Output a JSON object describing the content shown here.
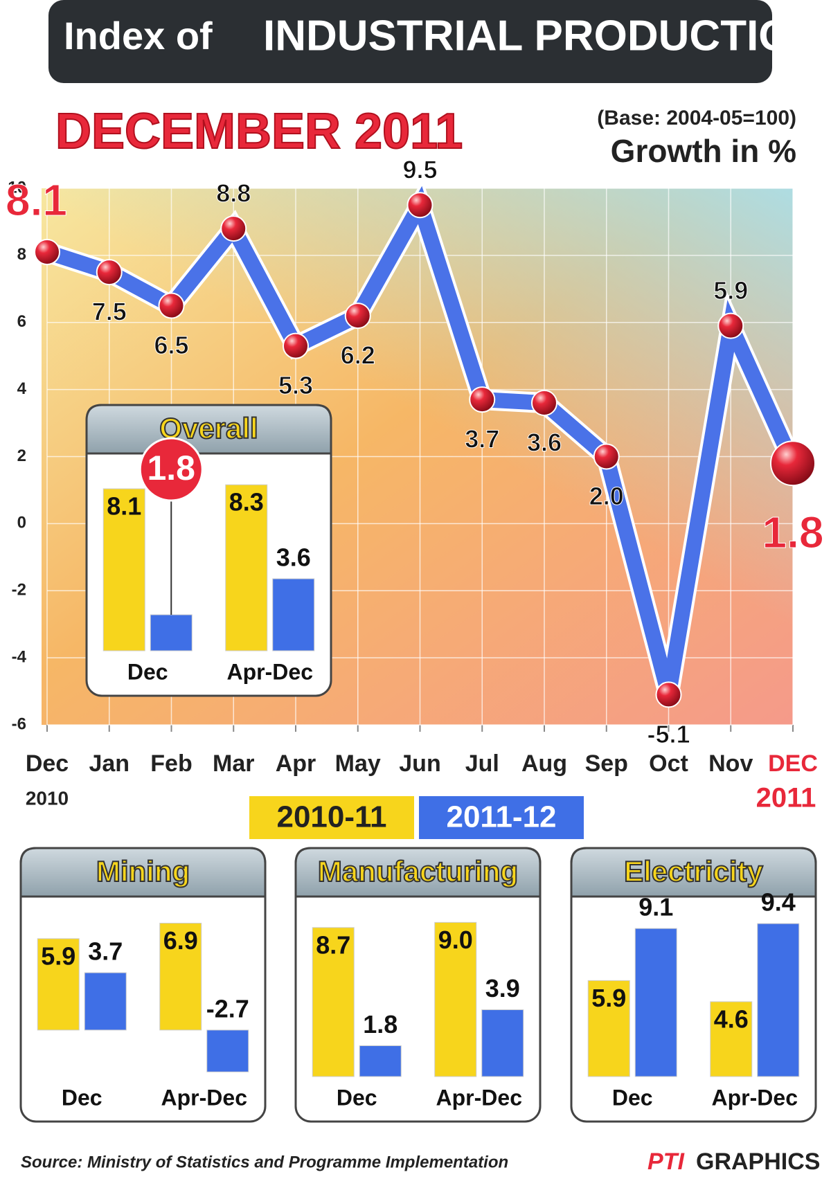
{
  "header": {
    "title_prefix": "Index of",
    "title": "INDUSTRIAL PRODUCTION"
  },
  "chart_data": [
    {
      "type": "line",
      "title": "DECEMBER 2011",
      "note": "(Base: 2004-05=100)",
      "y_label": "Growth in %",
      "categories": [
        "Dec",
        "Jan",
        "Feb",
        "Mar",
        "Apr",
        "May",
        "Jun",
        "Jul",
        "Aug",
        "Sep",
        "Oct",
        "Nov",
        "DEC"
      ],
      "start_year": "2010",
      "end_year": "2011",
      "values": [
        8.1,
        7.5,
        6.5,
        8.8,
        5.3,
        6.2,
        9.5,
        3.7,
        3.6,
        2.0,
        -5.1,
        5.9,
        1.8
      ],
      "value_labels": [
        "8.1",
        "7.5",
        "6.5",
        "8.8",
        "5.3",
        "6.2",
        "9.5",
        "3.7",
        "3.6",
        "2.0",
        "-5.1",
        "5.9",
        "1.8"
      ],
      "color": "#4a72e8",
      "ylim": [
        -6,
        10
      ],
      "yticks": [
        -6,
        -4,
        -2,
        0,
        2,
        4,
        6,
        8,
        10
      ],
      "grid": true
    },
    {
      "type": "bar",
      "title": "Overall",
      "categories": [
        "Dec",
        "Apr-Dec"
      ],
      "ylim": [
        0,
        9
      ],
      "series": [
        {
          "color": "#f7d51c",
          "values": [
            8.1,
            8.3
          ],
          "value_labels": [
            "8.1",
            "8.3"
          ]
        },
        {
          "color": "#3f6fe6",
          "values": [
            1.8,
            3.6
          ],
          "value_labels": [
            "1.8",
            "3.6"
          ]
        }
      ]
    },
    {
      "type": "bar",
      "title": "Mining",
      "categories": [
        "Dec",
        "Apr-Dec"
      ],
      "ylim": [
        -3,
        7.5
      ],
      "series": [
        {
          "color": "#f7d51c",
          "values": [
            5.9,
            6.9
          ],
          "value_labels": [
            "5.9",
            "6.9"
          ]
        },
        {
          "color": "#3f6fe6",
          "values": [
            3.7,
            -2.7
          ],
          "value_labels": [
            "3.7",
            "-2.7"
          ]
        }
      ]
    },
    {
      "type": "bar",
      "title": "Manufacturing",
      "categories": [
        "Dec",
        "Apr-Dec"
      ],
      "ylim": [
        0,
        9.5
      ],
      "series": [
        {
          "color": "#f7d51c",
          "values": [
            8.7,
            9.0
          ],
          "value_labels": [
            "8.7",
            "9.0"
          ]
        },
        {
          "color": "#3f6fe6",
          "values": [
            1.8,
            3.9
          ],
          "value_labels": [
            "1.8",
            "3.9"
          ]
        }
      ]
    },
    {
      "type": "bar",
      "title": "Electricity",
      "categories": [
        "Dec",
        "Apr-Dec"
      ],
      "ylim": [
        0,
        10
      ],
      "series": [
        {
          "color": "#f7d51c",
          "values": [
            5.9,
            4.6
          ],
          "value_labels": [
            "5.9",
            "4.6"
          ]
        },
        {
          "color": "#3f6fe6",
          "values": [
            9.1,
            9.4
          ],
          "value_labels": [
            "9.1",
            "9.4"
          ]
        }
      ]
    }
  ],
  "legend": [
    {
      "name": "2010-11",
      "color": "#f7d51c"
    },
    {
      "name": "2011-12",
      "color": "#3f6fe6"
    }
  ],
  "footer": {
    "source": "Source: Ministry of Statistics and Programme Implementation",
    "brand": "PTI",
    "brand_suffix": "GRAPHICS"
  }
}
